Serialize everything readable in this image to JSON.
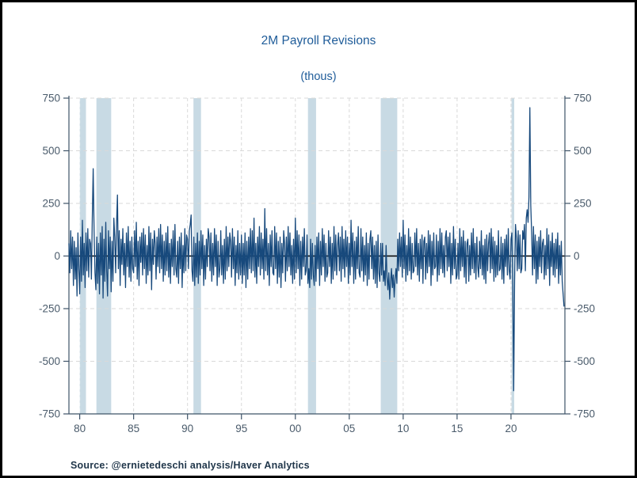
{
  "header": {
    "title": "2M Payroll Revisions",
    "subtitle": "(thous)"
  },
  "footer": {
    "source": "Source:  @ernietedeschi analysis/Haver Analytics"
  },
  "style": {
    "line_color": "#17497c",
    "band_color": "#c8dae4",
    "grid_color": "#d9d9d9",
    "band_grid_color": "#f4f7f9",
    "axis_color": "#3e5368",
    "tick_label_color": "#4a5b6b",
    "zero_line_color": "#000000",
    "title_color": "#1f5c99",
    "source_color": "#21374b"
  },
  "chart_data": {
    "type": "line",
    "title": "2M Payroll Revisions",
    "subtitle": "(thous)",
    "ylabel": "",
    "xlabel": "",
    "frequency": "monthly",
    "x_start_year": 1979,
    "x_axis": {
      "min": 1979,
      "max": 2025,
      "tick_years": [
        1980,
        1985,
        1990,
        1995,
        2000,
        2005,
        2010,
        2015,
        2020
      ],
      "tick_labels": [
        "80",
        "85",
        "90",
        "95",
        "00",
        "05",
        "10",
        "15",
        "20"
      ]
    },
    "y_axis": {
      "min": -750,
      "max": 750,
      "ticks": [
        -750,
        -500,
        -250,
        0,
        250,
        500,
        750
      ],
      "tick_labels": [
        "-750",
        "-500",
        "-250",
        "0",
        "250",
        "500",
        "750"
      ]
    },
    "grid": true,
    "legend": "none",
    "recession_bands": [
      [
        1980.0,
        1980.58
      ],
      [
        1981.55,
        1982.92
      ],
      [
        1990.55,
        1991.25
      ],
      [
        2001.17,
        2001.92
      ],
      [
        2007.92,
        2009.45
      ],
      [
        2020.05,
        2020.3
      ]
    ],
    "values": [
      60,
      -80,
      120,
      -60,
      90,
      -140,
      70,
      -110,
      40,
      -190,
      110,
      -60,
      -180,
      90,
      -120,
      170,
      -90,
      60,
      -150,
      110,
      -70,
      130,
      -100,
      80,
      60,
      -110,
      180,
      415,
      120,
      -80,
      -160,
      90,
      -130,
      60,
      -180,
      110,
      -90,
      140,
      -200,
      80,
      -120,
      160,
      -70,
      -190,
      120,
      -60,
      90,
      -170,
      70,
      -120,
      180,
      90,
      -80,
      150,
      290,
      -60,
      120,
      -140,
      80,
      -40,
      130,
      -90,
      60,
      -150,
      110,
      -50,
      140,
      -100,
      70,
      -120,
      90,
      -60,
      -80,
      120,
      -50,
      160,
      -110,
      70,
      -140,
      90,
      -30,
      110,
      -90,
      130,
      -60,
      100,
      -130,
      50,
      -90,
      140,
      -70,
      110,
      -160,
      80,
      -40,
      120,
      60,
      -110,
      90,
      -50,
      130,
      -80,
      150,
      -60,
      100,
      -120,
      70,
      -90,
      110,
      -70,
      140,
      -100,
      60,
      -130,
      80,
      -50,
      120,
      -90,
      150,
      -60,
      -100,
      70,
      -130,
      90,
      -60,
      110,
      -150,
      50,
      -80,
      130,
      -70,
      100,
      80,
      -60,
      120,
      150,
      195,
      -70,
      -120,
      90,
      -140,
      60,
      -100,
      110,
      -130,
      70,
      -90,
      120,
      -60,
      100,
      -140,
      50,
      -110,
      80,
      -50,
      130,
      90,
      -70,
      110,
      -120,
      60,
      -90,
      130,
      -50,
      100,
      -140,
      70,
      -100,
      -60,
      120,
      -90,
      50,
      -130,
      80,
      -110,
      140,
      -70,
      90,
      -50,
      110,
      70,
      -100,
      130,
      -60,
      90,
      -140,
      50,
      -80,
      120,
      -110,
      60,
      -90,
      100,
      -130,
      60,
      -90,
      110,
      -150,
      70,
      -110,
      90,
      -60,
      130,
      -80,
      120,
      -70,
      180,
      -100,
      60,
      -130,
      90,
      -50,
      140,
      -90,
      110,
      -60,
      80,
      -110,
      225,
      -70,
      130,
      -90,
      60,
      -140,
      100,
      -50,
      120,
      -80,
      -90,
      140,
      -60,
      110,
      -130,
      70,
      -100,
      90,
      -150,
      60,
      -80,
      120,
      60,
      -120,
      90,
      -70,
      140,
      -50,
      110,
      -90,
      50,
      -130,
      80,
      -110,
      180,
      -80,
      120,
      -60,
      100,
      -140,
      70,
      -110,
      90,
      -50,
      130,
      -90,
      -70,
      100,
      -130,
      -60,
      -150,
      80,
      -110,
      60,
      -90,
      -140,
      50,
      -120,
      90,
      -60,
      110,
      -140,
      70,
      -90,
      130,
      -50,
      100,
      -120,
      60,
      -100,
      -80,
      120,
      -50,
      90,
      -130,
      60,
      -110,
      140,
      -70,
      100,
      -90,
      50,
      110,
      -70,
      90,
      -120,
      140,
      -60,
      80,
      -100,
      120,
      -50,
      90,
      -130,
      60,
      -90,
      170,
      -50,
      110,
      -130,
      70,
      -110,
      90,
      -60,
      140,
      -80,
      -100,
      130,
      -70,
      90,
      -120,
      50,
      -90,
      110,
      -140,
      60,
      -110,
      80,
      120,
      -60,
      90,
      -110,
      50,
      -130,
      70,
      -150,
      100,
      -80,
      -120,
      60,
      -90,
      60,
      -120,
      -70,
      -140,
      50,
      -100,
      -160,
      -80,
      -205,
      -120,
      -60,
      -150,
      -90,
      -195,
      -110,
      -60,
      -130,
      80,
      -70,
      110,
      -50,
      90,
      -100,
      170,
      -60,
      100,
      -120,
      50,
      -90,
      130,
      -70,
      90,
      -110,
      60,
      -80,
      -70,
      110,
      -50,
      130,
      -90,
      60,
      -120,
      80,
      -60,
      100,
      -130,
      70,
      90,
      -110,
      60,
      -80,
      120,
      -50,
      100,
      -140,
      70,
      -90,
      110,
      -60,
      -50,
      100,
      -120,
      70,
      -90,
      130,
      -60,
      110,
      -80,
      50,
      -100,
      90,
      120,
      -70,
      90,
      -50,
      110,
      -130,
      60,
      -90,
      140,
      -60,
      80,
      -110,
      -90,
      60,
      -110,
      130,
      -70,
      90,
      -50,
      120,
      -100,
      70,
      -130,
      60,
      80,
      -120,
      50,
      -90,
      110,
      -60,
      130,
      -80,
      60,
      -110,
      90,
      -50,
      -100,
      70,
      -60,
      120,
      -90,
      50,
      -110,
      80,
      -130,
      100,
      -70,
      60,
      110,
      -80,
      130,
      -60,
      90,
      -120,
      70,
      -100,
      50,
      -90,
      120,
      -70,
      -60,
      90,
      -110,
      60,
      -130,
      80,
      -50,
      100,
      -90,
      130,
      -70,
      -110,
      80,
      110,
      -150,
      -640,
      -120,
      150,
      90,
      -70,
      120,
      -60,
      100,
      -80,
      -60,
      120,
      80,
      150,
      -70,
      180,
      220,
      160,
      280,
      705,
      240,
      110,
      -90,
      140,
      -60,
      100,
      -130,
      70,
      -110,
      90,
      -50,
      120,
      -80,
      60,
      80,
      -110,
      50,
      -90,
      130,
      -60,
      100,
      -140,
      70,
      -50,
      110,
      -90,
      60,
      -100,
      80,
      -60,
      110,
      -130,
      50,
      -90,
      70,
      -120,
      -180,
      -240
    ]
  }
}
